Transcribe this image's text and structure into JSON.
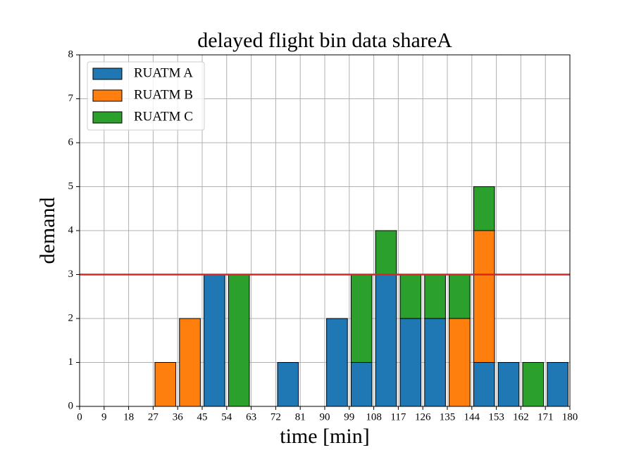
{
  "chart_data": {
    "type": "stacked_histogram",
    "title": "delayed flight bin data shareA",
    "xlabel": "time [min]",
    "ylabel": "demand",
    "bins": [
      0,
      9,
      18,
      27,
      36,
      45,
      54,
      63,
      72,
      81,
      90,
      99,
      108,
      117,
      126,
      135,
      144,
      153,
      162,
      171,
      180
    ],
    "series": [
      {
        "name": "RUATM A",
        "color": "#1f77b4",
        "values": [
          0,
          0,
          0,
          0,
          0,
          3,
          0,
          0,
          1,
          0,
          2,
          1,
          3,
          2,
          2,
          0,
          1,
          1,
          0,
          1
        ]
      },
      {
        "name": "RUATM B",
        "color": "#ff7f0e",
        "values": [
          0,
          0,
          0,
          1,
          2,
          0,
          0,
          0,
          0,
          0,
          0,
          0,
          0,
          0,
          0,
          2,
          3,
          0,
          0,
          0
        ]
      },
      {
        "name": "RUATM C",
        "color": "#2ca02c",
        "values": [
          0,
          0,
          0,
          0,
          0,
          0,
          3,
          0,
          0,
          0,
          0,
          2,
          1,
          1,
          1,
          1,
          1,
          0,
          1,
          0
        ]
      }
    ],
    "hline": {
      "value": 3,
      "color": "#d62728"
    },
    "xlim": [
      0,
      180
    ],
    "ylim": [
      0,
      8
    ],
    "xticks": [
      0,
      9,
      18,
      27,
      36,
      45,
      54,
      63,
      72,
      81,
      90,
      99,
      108,
      117,
      126,
      135,
      144,
      153,
      162,
      171,
      180
    ],
    "yticks": [
      0,
      1,
      2,
      3,
      4,
      5,
      6,
      7,
      8
    ],
    "grid": true,
    "legend": "upper left"
  }
}
